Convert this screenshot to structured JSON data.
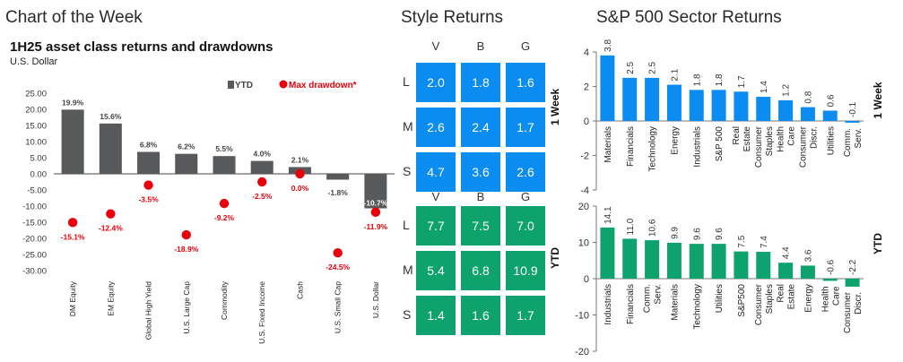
{
  "header": {
    "title": "Chart of the Week",
    "style_title": "Style Returns",
    "sector_title": "S&P 500 Sector Returns"
  },
  "chart_data": [
    {
      "type": "bar",
      "title": "1H25 asset class returns and drawdowns",
      "ylabel": "U.S. Dollar",
      "categories": [
        "DM Equity",
        "EM Equity",
        "Global High Yield",
        "U.S. Large Cap",
        "Commodity",
        "U.S. Fixed Income",
        "Cash",
        "U.S. Small Cap",
        "U.S. Dollar"
      ],
      "series": [
        {
          "name": "YTD",
          "values": [
            19.9,
            15.6,
            6.8,
            6.2,
            5.5,
            4.0,
            2.1,
            -1.8,
            -10.7
          ],
          "labels": [
            "19.9%",
            "15.6%",
            "6.8%",
            "6.2%",
            "5.5%",
            "4.0%",
            "2.1%",
            "-1.8%",
            "-10.7%"
          ],
          "color": "#58595b"
        },
        {
          "name": "Max drawdown*",
          "values": [
            -15.1,
            -12.4,
            -3.5,
            -18.9,
            -9.2,
            -2.5,
            0.0,
            -24.5,
            -11.9
          ],
          "labels": [
            "-15.1%",
            "-12.4%",
            "-3.5%",
            "-18.9%",
            "-9.2%",
            "-2.5%",
            "0.0%",
            "-24.5%",
            "-11.9%"
          ],
          "color": "#e8000b"
        }
      ],
      "ylim": [
        -30,
        25
      ],
      "yticks": [
        "25.00",
        "20.00",
        "15.00",
        "10.00",
        "5.00",
        "0.00",
        "-5.00",
        "-10.00",
        "-15.00",
        "-20.00",
        "-25.00",
        "-30.00"
      ],
      "legend": "top"
    },
    {
      "type": "table",
      "title": "Style Returns",
      "columns": [
        "V",
        "B",
        "G"
      ],
      "rows": [
        "L",
        "M",
        "S"
      ],
      "panels": [
        {
          "name": "1 Week",
          "color": "#0a8cf0",
          "values": [
            [
              "2.0",
              "1.8",
              "1.6"
            ],
            [
              "2.6",
              "2.4",
              "1.7"
            ],
            [
              "4.7",
              "3.6",
              "2.6"
            ]
          ]
        },
        {
          "name": "YTD",
          "color": "#0ea36e",
          "values": [
            [
              "7.7",
              "7.5",
              "7.0"
            ],
            [
              "5.4",
              "6.8",
              "10.9"
            ],
            [
              "1.4",
              "1.6",
              "1.7"
            ]
          ]
        }
      ]
    },
    {
      "type": "bar",
      "title": "1 Week",
      "categories": [
        "Materials",
        "Financials",
        "Technology",
        "Energy",
        "Industrials",
        "S&P 500",
        "Real Estate",
        "Consumer Staples",
        "Health Care",
        "Consumer Discr.",
        "Utilities",
        "Comm. Serv."
      ],
      "values": [
        3.8,
        2.5,
        2.5,
        2.1,
        1.8,
        1.8,
        1.7,
        1.4,
        1.2,
        0.8,
        0.6,
        -0.1
      ],
      "labels": [
        "3.8",
        "2.5",
        "2.5",
        "2.1",
        "1.8",
        "1.8",
        "1.7",
        "1.4",
        "1.2",
        "0.8",
        "0.6",
        "-0.1"
      ],
      "ylim": [
        -4,
        4
      ],
      "yticks": [
        "4",
        "2",
        "0",
        "-2",
        "-4"
      ],
      "color": "#0a8cf0"
    },
    {
      "type": "bar",
      "title": "YTD",
      "categories": [
        "Industrials",
        "Financials",
        "Comm. Serv.",
        "Materials",
        "Technology",
        "Utilities",
        "S&P500",
        "Consumer Staples",
        "Real Estate",
        "Energy",
        "Health Care",
        "Consumer Discr."
      ],
      "values": [
        14.1,
        11.0,
        10.6,
        9.9,
        9.6,
        9.6,
        7.5,
        7.4,
        4.4,
        3.6,
        -0.6,
        -2.2
      ],
      "labels": [
        "14.1",
        "11.0",
        "10.6",
        "9.9",
        "9.6",
        "9.6",
        "7.5",
        "7.4",
        "4.4",
        "3.6",
        "-0.6",
        "-2.2"
      ],
      "ylim": [
        -20,
        20
      ],
      "yticks": [
        "20",
        "10",
        "0",
        "-10",
        "-20"
      ],
      "color": "#0ea36e"
    }
  ]
}
